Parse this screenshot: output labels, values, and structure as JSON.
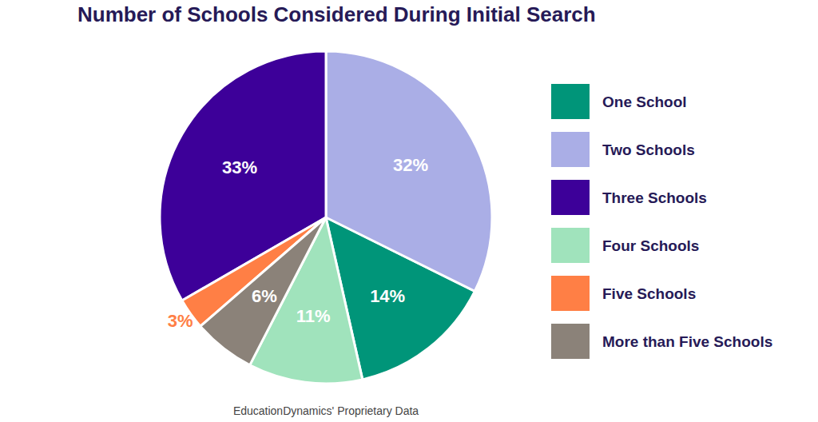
{
  "chart_data": {
    "type": "pie",
    "title": "Number of Schools Considered During Initial Search",
    "categories": [
      "One School",
      "Two Schools",
      "Three Schools",
      "Four Schools",
      "Five Schools",
      "More than Five Schools"
    ],
    "values": [
      14,
      32,
      33,
      11,
      3,
      6
    ],
    "value_labels": [
      "14%",
      "32%",
      "33%",
      "11%",
      "3%",
      "6%"
    ],
    "colors": [
      "#009579",
      "#aaaee6",
      "#3d0099",
      "#a0e3bc",
      "#ff7f45",
      "#8b8279"
    ],
    "data_labels": true,
    "legend": "right",
    "source": "EducationDynamics' Proprietary Data"
  }
}
